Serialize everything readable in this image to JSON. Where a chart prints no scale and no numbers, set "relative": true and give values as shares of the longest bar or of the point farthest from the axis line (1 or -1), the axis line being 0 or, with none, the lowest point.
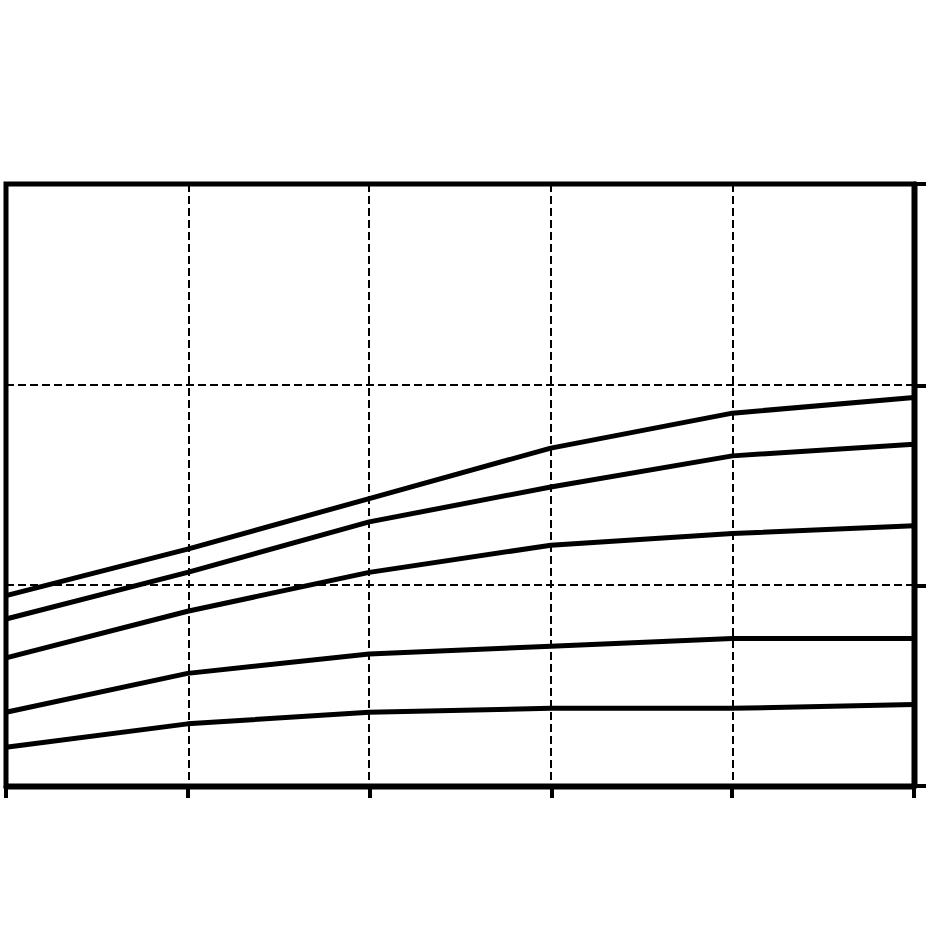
{
  "chart_data": {
    "type": "line",
    "relative": true,
    "categories": [
      null,
      null,
      null,
      null,
      null,
      null
    ],
    "series": [
      {
        "color": "#000000",
        "values": [
          0.49,
          0.61,
          0.74,
          0.87,
          0.96,
          1
        ]
      },
      {
        "color": "#000000",
        "values": [
          0.43,
          0.55,
          0.68,
          0.77,
          0.85,
          0.88
        ]
      },
      {
        "color": "#000000",
        "values": [
          0.33,
          0.45,
          0.55,
          0.62,
          0.65,
          0.67
        ]
      },
      {
        "color": "#000000",
        "values": [
          0.19,
          0.29,
          0.34,
          0.36,
          0.38,
          0.38
        ]
      },
      {
        "color": "#000000",
        "values": [
          0.1,
          0.16,
          0.19,
          0.2,
          0.2,
          0.21
        ]
      }
    ],
    "grid": true,
    "marker": "none",
    "line_style": "solid"
  }
}
